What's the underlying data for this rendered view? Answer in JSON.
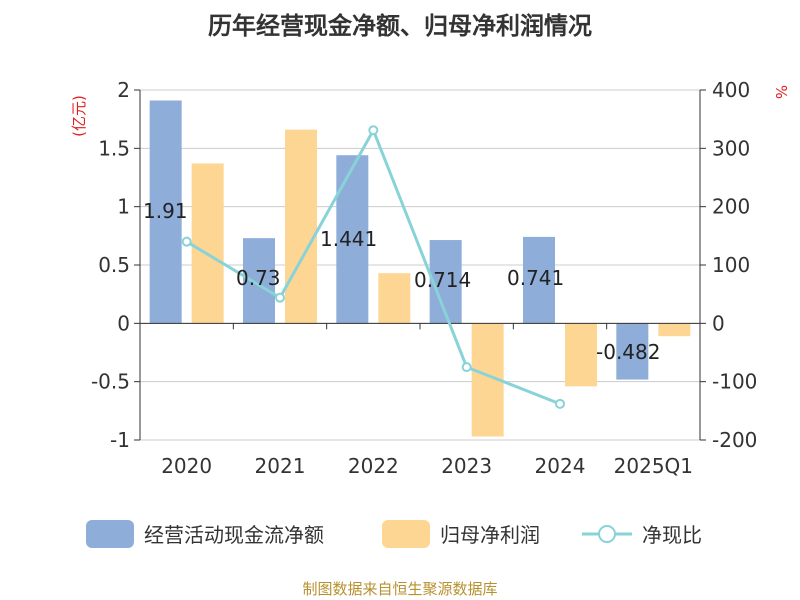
{
  "title": "历年经营现金净额、归母净利润情况",
  "source": "制图数据来自恒生聚源数据库",
  "chart_data": {
    "type": "bar",
    "categories": [
      "2020",
      "2021",
      "2022",
      "2023",
      "2024",
      "2025Q1"
    ],
    "y_left": {
      "unit": "(亿元)",
      "min": -1,
      "max": 2,
      "ticks": [
        "2",
        "1.5",
        "1",
        "0.5",
        "0",
        "-0.5",
        "-1"
      ]
    },
    "y_right": {
      "unit": "%",
      "min": -200,
      "max": 400,
      "ticks": [
        "400",
        "300",
        "200",
        "100",
        "0",
        "-100",
        "-200"
      ]
    },
    "series": [
      {
        "name": "经营活动现金流净额",
        "type": "bar",
        "axis": "left",
        "color": "#8eadd9",
        "values": [
          1.91,
          0.73,
          1.441,
          0.714,
          0.741,
          -0.482
        ],
        "labels": [
          "1.91",
          "0.73",
          "1.441",
          "0.714",
          "0.741",
          "-0.482"
        ]
      },
      {
        "name": "归母净利润",
        "type": "bar",
        "axis": "left",
        "color": "#fed694",
        "values": [
          1.37,
          1.66,
          0.43,
          -0.97,
          -0.54,
          -0.11
        ]
      },
      {
        "name": "净现比",
        "type": "line",
        "axis": "right",
        "color": "#88d3d8",
        "values": [
          140,
          44,
          331,
          -75,
          -138,
          null
        ]
      }
    ],
    "legend": [
      "经营活动现金流净额",
      "归母净利润",
      "净现比"
    ],
    "legend_position": "bottom",
    "grid": true
  }
}
